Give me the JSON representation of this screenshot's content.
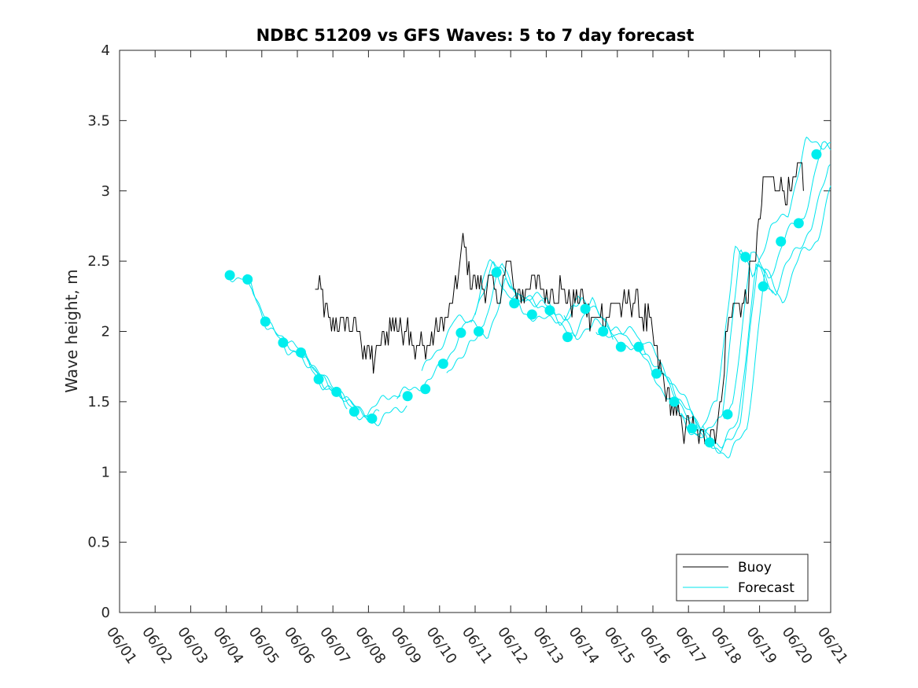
{
  "chart_data": {
    "type": "line",
    "title": "NDBC 51209 vs GFS Waves: 5 to 7 day forecast",
    "xlabel": "",
    "ylabel": "Wave height, m",
    "x_ticks": [
      "06/01",
      "06/02",
      "06/03",
      "06/04",
      "06/05",
      "06/06",
      "06/07",
      "06/08",
      "06/09",
      "06/10",
      "06/11",
      "06/12",
      "06/13",
      "06/14",
      "06/15",
      "06/16",
      "06/17",
      "06/18",
      "06/19",
      "06/20",
      "06/21"
    ],
    "xlim": [
      "06/01",
      "06/21"
    ],
    "y_ticks": [
      "0",
      "0.5",
      "1",
      "1.5",
      "2",
      "2.5",
      "3",
      "3.5",
      "4"
    ],
    "ylim": [
      0,
      4
    ],
    "grid": false,
    "legend": {
      "location": "bottom-right",
      "entries": [
        {
          "label": "Buoy",
          "color": "#000000"
        },
        {
          "label": "Forecast",
          "color": "#00e5ee"
        }
      ]
    },
    "colors": {
      "buoy": "#000000",
      "forecast": "#00e5ee",
      "marker": "#00eeee"
    },
    "series": [
      {
        "name": "Buoy",
        "x_day": [
          6.5,
          6.6,
          6.75,
          6.85,
          6.95,
          7.1,
          7.25,
          7.4,
          7.55,
          7.7,
          7.85,
          8.0,
          8.15,
          8.3,
          8.45,
          8.55,
          8.65,
          8.75,
          8.85,
          8.95,
          9.05,
          9.2,
          9.35,
          9.45,
          9.55,
          9.7,
          9.85,
          10.0,
          10.15,
          10.3,
          10.4,
          10.5,
          10.6,
          10.7,
          10.85,
          11.0,
          11.15,
          11.3,
          11.45,
          11.6,
          11.75,
          11.9,
          12.0,
          12.15,
          12.3,
          12.45,
          12.6,
          12.75,
          12.9,
          13.05,
          13.2,
          13.35,
          13.5,
          13.65,
          13.8,
          13.95,
          14.1,
          14.25,
          14.4,
          14.55,
          14.7,
          14.85,
          15.0,
          15.15,
          15.3,
          15.45,
          15.6,
          15.75,
          15.9,
          16.05,
          16.2,
          16.35,
          16.5,
          16.65,
          16.8,
          16.95,
          17.1,
          17.25,
          17.4,
          17.55,
          17.65,
          17.75,
          17.85,
          17.95,
          18.05,
          18.15,
          18.3,
          18.45,
          18.6,
          18.75,
          18.9,
          19.05,
          19.2,
          19.35,
          19.5,
          19.65,
          19.8,
          19.95,
          20.1,
          20.25
        ],
        "y": [
          2.3,
          2.3,
          2.2,
          2.1,
          2.0,
          2.05,
          2.0,
          2.1,
          2.0,
          2.0,
          1.9,
          1.85,
          1.8,
          1.9,
          2.0,
          2.0,
          2.05,
          2.1,
          2.0,
          2.0,
          2.1,
          2.0,
          1.85,
          1.9,
          1.9,
          1.9,
          2.0,
          2.05,
          2.1,
          2.15,
          2.25,
          2.35,
          2.55,
          2.6,
          2.4,
          2.35,
          2.3,
          2.3,
          2.35,
          2.25,
          2.3,
          2.5,
          2.45,
          2.3,
          2.25,
          2.3,
          2.35,
          2.3,
          2.3,
          2.25,
          2.3,
          2.3,
          2.3,
          2.2,
          2.2,
          2.25,
          2.2,
          2.05,
          2.1,
          2.15,
          2.1,
          2.2,
          2.2,
          2.15,
          2.2,
          2.2,
          2.15,
          2.1,
          2.05,
          1.85,
          1.7,
          1.6,
          1.5,
          1.4,
          1.35,
          1.3,
          1.3,
          1.25,
          1.25,
          1.25,
          1.3,
          1.3,
          1.4,
          1.6,
          1.9,
          2.1,
          2.2,
          2.2,
          2.2,
          2.4,
          2.6,
          2.9,
          3.1,
          3.05,
          3.1,
          3.0,
          2.95,
          3.0,
          3.15,
          3.1
        ]
      },
      {
        "name": "Forecast",
        "x_day": [
          4.1,
          4.6,
          5.1,
          5.6,
          6.1,
          6.6,
          7.1,
          7.6,
          8.1,
          9.1,
          9.6,
          10.1,
          10.6,
          11.1,
          11.6,
          12.1,
          12.6,
          13.1,
          13.6,
          14.1,
          14.6,
          15.1,
          15.6,
          16.1,
          16.6,
          17.1,
          17.6,
          18.1,
          18.6,
          19.1,
          19.6,
          20.1,
          20.6
        ],
        "y": [
          2.4,
          2.37,
          2.07,
          1.92,
          1.85,
          1.66,
          1.57,
          1.43,
          1.38,
          1.54,
          1.59,
          1.77,
          1.99,
          2.0,
          2.42,
          2.2,
          2.12,
          2.15,
          1.96,
          2.16,
          2.0,
          1.89,
          1.89,
          1.7,
          1.5,
          1.31,
          1.21,
          1.41,
          2.53,
          2.32,
          2.64,
          2.77,
          3.26
        ]
      }
    ]
  }
}
